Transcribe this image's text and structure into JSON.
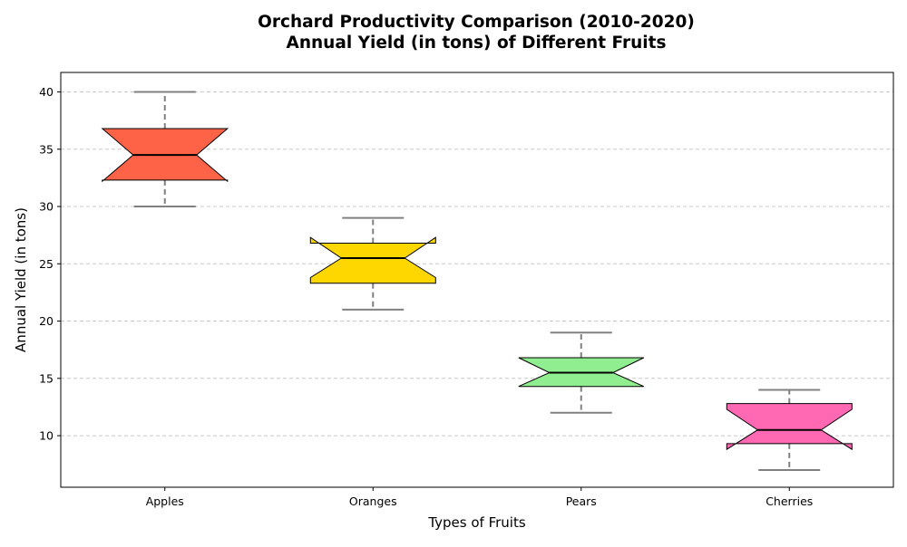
{
  "chart_data": {
    "type": "box",
    "title_lines": [
      "Orchard Productivity Comparison (2010-2020)",
      "Annual Yield (in tons) of Different Fruits"
    ],
    "xlabel": "Types of Fruits",
    "ylabel": "Annual Yield (in tons)",
    "ylim": [
      5.5,
      41.7
    ],
    "yticks": [
      10,
      15,
      20,
      25,
      30,
      35,
      40
    ],
    "grid": "y-dashed",
    "notched": true,
    "categories": [
      "Apples",
      "Oranges",
      "Pears",
      "Cherries"
    ],
    "boxes": [
      {
        "category": "Apples",
        "whisker_low": 30,
        "q1": 32.3,
        "median": 34.5,
        "q3": 36.8,
        "whisker_high": 40,
        "notch_low": 32.2,
        "notch_high": 36.8,
        "color": "#FF6347"
      },
      {
        "category": "Oranges",
        "whisker_low": 21,
        "q1": 23.3,
        "median": 25.5,
        "q3": 26.8,
        "whisker_high": 29,
        "notch_low": 23.8,
        "notch_high": 27.3,
        "color": "#FFD700"
      },
      {
        "category": "Pears",
        "whisker_low": 12,
        "q1": 14.3,
        "median": 15.5,
        "q3": 16.8,
        "whisker_high": 19,
        "notch_low": 14.3,
        "notch_high": 16.8,
        "color": "#90EE90"
      },
      {
        "category": "Cherries",
        "whisker_low": 7,
        "q1": 9.3,
        "median": 10.5,
        "q3": 12.8,
        "whisker_high": 14,
        "notch_low": 8.8,
        "notch_high": 12.3,
        "color": "#FF69B4"
      }
    ],
    "colors": {
      "median": "#000000",
      "whisker": "#808080",
      "grid": "#c8c8c8",
      "box_edge": "#000000"
    }
  }
}
